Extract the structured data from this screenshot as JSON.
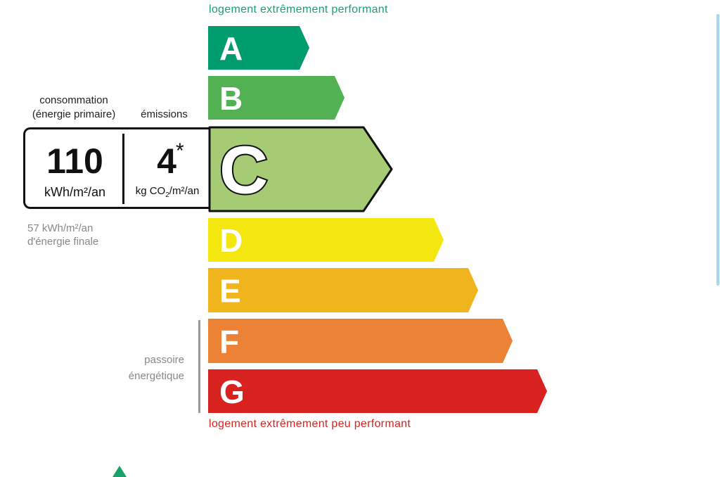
{
  "label": {
    "top_caption": "logement extrêmement performant",
    "bottom_caption": "logement extrêmement peu performant",
    "classes": [
      {
        "letter": "A",
        "color": "#009c6d"
      },
      {
        "letter": "B",
        "color": "#52b153"
      },
      {
        "letter": "C",
        "color": "#a5cc74"
      },
      {
        "letter": "D",
        "color": "#f4e70f"
      },
      {
        "letter": "E",
        "color": "#f0b41c"
      },
      {
        "letter": "F",
        "color": "#eb8235"
      },
      {
        "letter": "G",
        "color": "#d7221f"
      }
    ],
    "current_class": "C",
    "consumption": {
      "header_line1": "consommation",
      "header_line2": "(énergie primaire)",
      "value": "110",
      "unit": "kWh/m²/an"
    },
    "emissions": {
      "header": "émissions",
      "value": "4",
      "asterisk": "*",
      "unit_prefix": "kg CO",
      "unit_sub": "2",
      "unit_suffix": "/m²/an"
    },
    "final_energy_line1": "57 kWh/m²/an",
    "final_energy_line2": "d'énergie finale",
    "passoire_line1": "passoire",
    "passoire_line2": "énergétique",
    "marker_color": "#1aa06a"
  }
}
